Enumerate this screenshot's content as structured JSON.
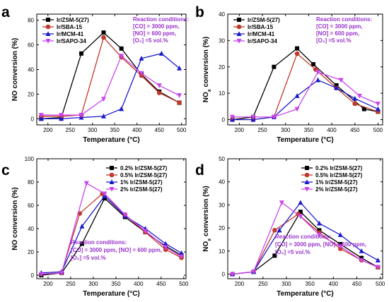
{
  "chart_data": [
    {
      "panel": "a",
      "type": "line",
      "xlabel": "Temperature (°C)",
      "ylabel": "NO conversion (%)",
      "xlim": [
        175,
        510
      ],
      "ylim": [
        -5,
        85
      ],
      "xticks": [
        200,
        250,
        300,
        350,
        400,
        450,
        500
      ],
      "yticks": [
        0,
        20,
        40,
        60,
        80
      ],
      "legend_position": "top-left",
      "conditions": [
        "Reaction conditions:",
        "[CO] = 3000 ppm,",
        "[NO] = 600 ppm,",
        "[O₂] =5 vol.%"
      ],
      "series": [
        {
          "name": "Ir/ZSM-5(27)",
          "color": "#000000",
          "marker": "square",
          "x": [
            185,
            230,
            275,
            325,
            365,
            410,
            450,
            495
          ],
          "y": [
            0,
            1,
            53,
            70,
            57,
            36,
            22,
            13
          ]
        },
        {
          "name": "Ir/SBA-15",
          "color": "#c0392b",
          "marker": "circle",
          "x": [
            185,
            230,
            275,
            325,
            365,
            410,
            450,
            495
          ],
          "y": [
            2,
            2,
            3,
            66,
            50,
            35,
            21,
            13
          ]
        },
        {
          "name": "Ir/MCM-41",
          "color": "#1a1acc",
          "marker": "triangle-up",
          "x": [
            185,
            230,
            275,
            325,
            365,
            410,
            455,
            495
          ],
          "y": [
            0,
            0,
            1,
            2,
            8,
            49,
            53,
            41
          ]
        },
        {
          "name": "Ir/SAPO-34",
          "color": "#cc44ee",
          "marker": "triangle-down",
          "x": [
            185,
            230,
            275,
            325,
            365,
            410,
            450,
            495
          ],
          "y": [
            3,
            3,
            3,
            16,
            51,
            37,
            27,
            19
          ]
        }
      ]
    },
    {
      "panel": "b",
      "type": "line",
      "xlabel": "Temperature (°C)",
      "ylabel": "NOx conversion (%)",
      "xlim": [
        175,
        510
      ],
      "ylim": [
        -2,
        40
      ],
      "xticks": [
        200,
        250,
        300,
        350,
        400,
        450,
        500
      ],
      "yticks": [
        0,
        10,
        20,
        30,
        40
      ],
      "legend_position": "top-left",
      "conditions": [
        "Reaction conditions:",
        "[CO] = 3000 ppm,",
        "[NO] = 600 ppm,",
        "[O₂] =5 vol.%"
      ],
      "series": [
        {
          "name": "Ir/ZSM-5(27)",
          "color": "#000000",
          "marker": "square",
          "x": [
            185,
            230,
            275,
            325,
            360,
            410,
            470,
            500
          ],
          "y": [
            0,
            1,
            20,
            27,
            21,
            13,
            4,
            3
          ]
        },
        {
          "name": "Ir/SBA-15",
          "color": "#c0392b",
          "marker": "circle",
          "x": [
            185,
            230,
            275,
            325,
            365,
            410,
            450,
            500
          ],
          "y": [
            0,
            0,
            1,
            25,
            19,
            12,
            6,
            3
          ]
        },
        {
          "name": "Ir/MCM-41",
          "color": "#1a1acc",
          "marker": "triangle-up",
          "x": [
            185,
            230,
            275,
            325,
            370,
            410,
            450,
            500
          ],
          "y": [
            0,
            0,
            1,
            9,
            15,
            12,
            8,
            4
          ]
        },
        {
          "name": "Ir/SAPO-34",
          "color": "#cc44ee",
          "marker": "triangle-down",
          "x": [
            185,
            230,
            275,
            325,
            370,
            420,
            460,
            500
          ],
          "y": [
            1,
            1,
            1,
            4,
            18,
            15,
            9,
            6
          ]
        }
      ]
    },
    {
      "panel": "c",
      "type": "line",
      "xlabel": "Temperature (°C)",
      "ylabel": "NO conversion (%)",
      "xlim": [
        175,
        505
      ],
      "ylim": [
        -3,
        100
      ],
      "xticks": [
        200,
        250,
        300,
        350,
        400,
        450,
        500
      ],
      "yticks": [
        0,
        20,
        40,
        60,
        80,
        100
      ],
      "legend_position": "top-right",
      "conditions": [
        "Reaction conditions:",
        "[CO] = 3000 ppm, [NO] = 600 ppm,",
        "[O₂] =5 vol.%"
      ],
      "series": [
        {
          "name": "0.2% Ir/ZSM-5(27)",
          "color": "#000000",
          "marker": "square",
          "x": [
            185,
            230,
            275,
            325,
            370,
            415,
            460,
            495
          ],
          "y": [
            0,
            2,
            27,
            66,
            50,
            37,
            25,
            17
          ]
        },
        {
          "name": "0.5% Ir/ZSM-5(27)",
          "color": "#c0392b",
          "marker": "circle",
          "x": [
            185,
            230,
            270,
            320,
            370,
            415,
            460,
            495
          ],
          "y": [
            1,
            2,
            53,
            70,
            52,
            37,
            22,
            15
          ]
        },
        {
          "name": "1% Ir/ZSM-5(27)",
          "color": "#1a1acc",
          "marker": "triangle-up",
          "x": [
            185,
            230,
            275,
            325,
            370,
            415,
            460,
            495
          ],
          "y": [
            2,
            3,
            42,
            68,
            51,
            40,
            27,
            19
          ]
        },
        {
          "name": "2% Ir/ZSM-5(27)",
          "color": "#cc44ee",
          "marker": "triangle-down",
          "x": [
            185,
            230,
            285,
            325,
            370,
            415,
            460,
            495
          ],
          "y": [
            1,
            2,
            79,
            70,
            52,
            38,
            24,
            16
          ]
        }
      ]
    },
    {
      "panel": "d",
      "type": "line",
      "xlabel": "Temperature (°C)",
      "ylabel": "NOx conversion (%)",
      "xlim": [
        175,
        505
      ],
      "ylim": [
        -2,
        50
      ],
      "xticks": [
        200,
        250,
        300,
        350,
        400,
        450,
        500
      ],
      "yticks": [
        0,
        10,
        20,
        30,
        40,
        50
      ],
      "legend_position": "top-right",
      "conditions": [
        "Reaction conditions:",
        "[CO] = 3000 ppm, [NO] = 600 ppm,",
        "[O₂] =5 vol.%"
      ],
      "series": [
        {
          "name": "0.2% Ir/ZSM-5(27)",
          "color": "#000000",
          "marker": "square",
          "x": [
            185,
            230,
            275,
            330,
            370,
            415,
            460,
            495
          ],
          "y": [
            0,
            1,
            8,
            27,
            19,
            13,
            7,
            3
          ]
        },
        {
          "name": "0.5% Ir/ZSM-5(27)",
          "color": "#c0392b",
          "marker": "circle",
          "x": [
            185,
            230,
            275,
            325,
            370,
            415,
            460,
            495
          ],
          "y": [
            0,
            1,
            19,
            26,
            18,
            11,
            6,
            3
          ]
        },
        {
          "name": "1% Ir/ZSM-5(27)",
          "color": "#1a1acc",
          "marker": "triangle-up",
          "x": [
            185,
            230,
            285,
            330,
            370,
            415,
            460,
            495
          ],
          "y": [
            0,
            1,
            19,
            31,
            22,
            17,
            10,
            6
          ]
        },
        {
          "name": "2% Ir/ZSM-5(27)",
          "color": "#cc44ee",
          "marker": "triangle-down",
          "x": [
            185,
            230,
            290,
            330,
            370,
            415,
            460,
            495
          ],
          "y": [
            0,
            1,
            31,
            25,
            17,
            12,
            6,
            3
          ]
        }
      ]
    }
  ]
}
